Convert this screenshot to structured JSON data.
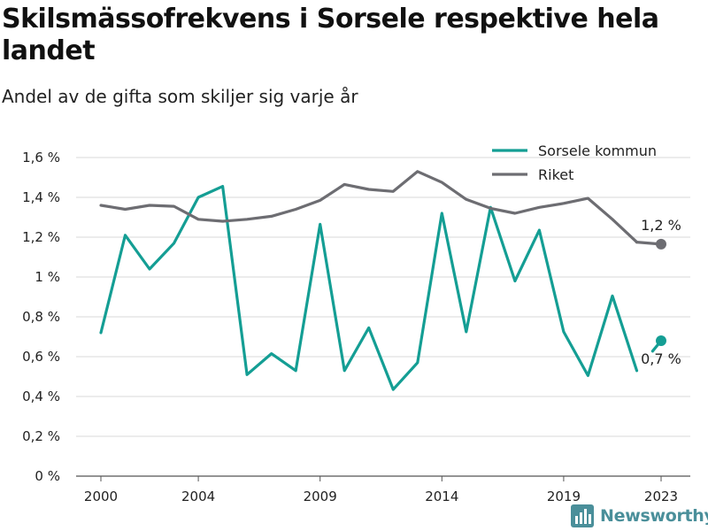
{
  "title": "Skilsmässofrekvens i Sorsele respektive hela landet",
  "subtitle": "Andel av de gifta som skiljer sig varje år",
  "brand": {
    "name": "Newsworthy",
    "color": "#4a8f9a",
    "icon": "bar-chart-icon"
  },
  "chart_data": {
    "type": "line",
    "x": [
      2000,
      2001,
      2002,
      2003,
      2004,
      2005,
      2006,
      2007,
      2008,
      2009,
      2010,
      2011,
      2012,
      2013,
      2014,
      2015,
      2016,
      2017,
      2018,
      2019,
      2020,
      2021,
      2022,
      2023
    ],
    "x_ticks": [
      2000,
      2004,
      2009,
      2014,
      2019,
      2023
    ],
    "x_tick_labels": [
      "2000",
      "2004",
      "2009",
      "2014",
      "2019",
      "2023"
    ],
    "y_ticks": [
      0,
      0.2,
      0.4,
      0.6,
      0.8,
      1.0,
      1.2,
      1.4,
      1.6
    ],
    "y_tick_labels": [
      "0 %",
      "0,2 %",
      "0,4 %",
      "0,6 %",
      "0,8 %",
      "1 %",
      "1,2 %",
      "1,4 %",
      "1,6 %"
    ],
    "xlim": [
      1999,
      2024
    ],
    "ylim": [
      0,
      1.6
    ],
    "grid": "horizontal",
    "legend_position": "top-right",
    "series": [
      {
        "name": "Sorsele kommun",
        "color": "#149e94",
        "values": [
          0.72,
          1.21,
          1.04,
          1.17,
          1.4,
          1.455,
          0.51,
          0.615,
          0.53,
          1.265,
          0.53,
          0.745,
          0.435,
          0.57,
          1.32,
          0.725,
          1.35,
          0.98,
          1.235,
          0.725,
          0.505,
          0.905,
          0.53,
          0.68
        ],
        "end_label": "0,7 %"
      },
      {
        "name": "Riket",
        "color": "#6d6d72",
        "values": [
          1.36,
          1.34,
          1.36,
          1.355,
          1.29,
          1.28,
          1.29,
          1.305,
          1.34,
          1.385,
          1.465,
          1.44,
          1.43,
          1.53,
          1.475,
          1.39,
          1.345,
          1.32,
          1.35,
          1.37,
          1.395,
          1.29,
          1.175,
          1.165
        ],
        "end_label": "1,2 %"
      }
    ]
  }
}
